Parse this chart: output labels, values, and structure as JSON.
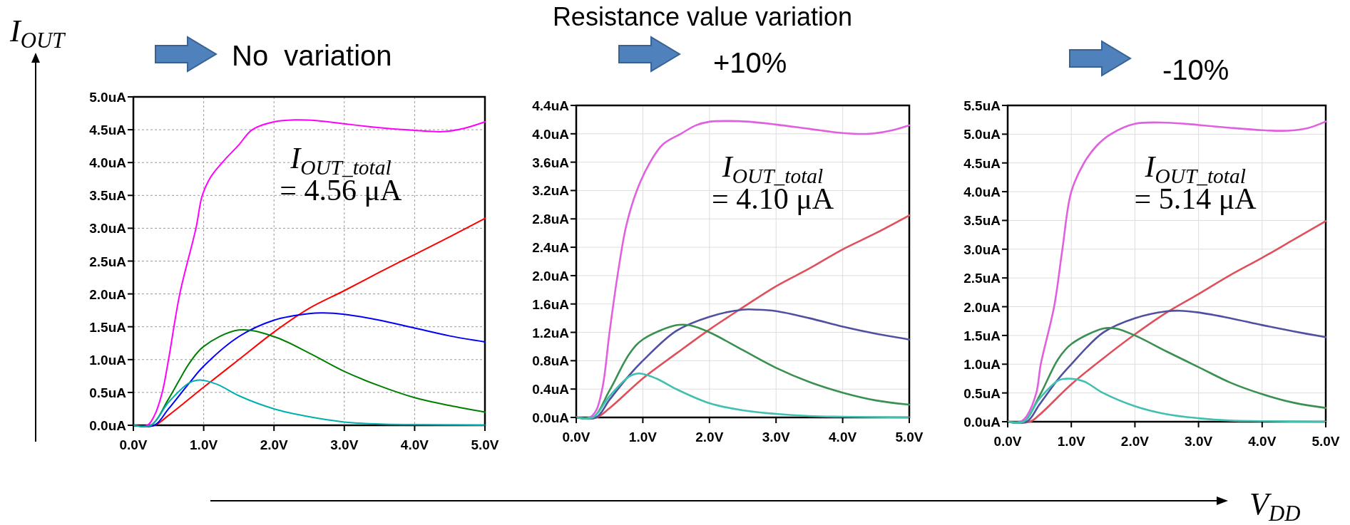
{
  "chart_data": [
    {
      "type": "line",
      "subtitle": "No  variation",
      "ylabel": "I$_{OUT}$",
      "annotations": [
        "I$_{OUT_total}$",
        "= 4.56 μA"
      ],
      "xlim": [
        0,
        5
      ],
      "ylim": [
        0,
        5
      ],
      "xticks": [
        {
          "value": 0,
          "label": "0.0V"
        },
        {
          "value": 1,
          "label": "1.0V"
        },
        {
          "value": 2,
          "label": "2.0V"
        },
        {
          "value": 3,
          "label": "3.0V"
        },
        {
          "value": 4,
          "label": "4.0V"
        },
        {
          "value": 5,
          "label": "5.0V"
        }
      ],
      "yticks": [
        {
          "value": 0,
          "label": "0.0uA"
        },
        {
          "value": 0.5,
          "label": "0.5uA"
        },
        {
          "value": 1,
          "label": "1.0uA"
        },
        {
          "value": 1.5,
          "label": "1.5uA"
        },
        {
          "value": 2,
          "label": "2.0uA"
        },
        {
          "value": 2.5,
          "label": "2.5uA"
        },
        {
          "value": 3,
          "label": "3.0uA"
        },
        {
          "value": 3.5,
          "label": "3.5uA"
        },
        {
          "value": 4,
          "label": "4.0uA"
        },
        {
          "value": 4.5,
          "label": "4.5uA"
        },
        {
          "value": 5,
          "label": "5.0uA"
        }
      ],
      "grid": true,
      "line_style": "solid",
      "series": [
        {
          "color": "#ff00ff",
          "x": [
            0,
            0.2,
            0.3,
            0.41,
            0.5,
            0.66,
            0.89,
            0.98,
            1.1,
            1.28,
            1.5,
            1.69,
            2.0,
            2.3,
            2.6,
            3.0,
            3.5,
            4.0,
            4.4,
            4.7,
            5.0
          ],
          "values": [
            0,
            0,
            0.15,
            0.5,
            1.0,
            2.0,
            3.0,
            3.5,
            3.78,
            4.02,
            4.27,
            4.5,
            4.62,
            4.65,
            4.64,
            4.59,
            4.53,
            4.49,
            4.47,
            4.52,
            4.62
          ]
        },
        {
          "color": "#ff0000",
          "x": [
            0,
            0.3,
            0.5,
            1.0,
            1.5,
            2.0,
            2.5,
            3.0,
            3.5,
            4.0,
            4.5,
            5.0
          ],
          "values": [
            0,
            0,
            0.15,
            0.58,
            1.0,
            1.42,
            1.78,
            2.05,
            2.33,
            2.6,
            2.87,
            3.15
          ]
        },
        {
          "color": "#0000ff",
          "x": [
            0,
            0.3,
            0.5,
            0.8,
            1.0,
            1.5,
            2.0,
            2.5,
            2.7,
            3.0,
            3.5,
            4.0,
            4.5,
            5.0
          ],
          "values": [
            0,
            0,
            0.25,
            0.65,
            0.9,
            1.35,
            1.6,
            1.7,
            1.71,
            1.69,
            1.6,
            1.48,
            1.36,
            1.27
          ]
        },
        {
          "color": "#008000",
          "x": [
            0,
            0.25,
            0.5,
            0.8,
            1.0,
            1.5,
            2.0,
            2.5,
            3.0,
            3.5,
            4.0,
            4.5,
            5.0
          ],
          "values": [
            0,
            0,
            0.4,
            0.95,
            1.2,
            1.45,
            1.35,
            1.1,
            0.82,
            0.6,
            0.42,
            0.3,
            0.2
          ]
        },
        {
          "color": "#00b0b0",
          "x": [
            0,
            0.25,
            0.5,
            0.8,
            0.95,
            1.2,
            1.5,
            2.0,
            2.5,
            3.0,
            3.5,
            4.0,
            5.0
          ],
          "values": [
            0,
            0,
            0.35,
            0.65,
            0.69,
            0.62,
            0.45,
            0.25,
            0.13,
            0.05,
            0.02,
            0.01,
            0
          ]
        }
      ]
    },
    {
      "type": "line",
      "title": "Resistance value variation",
      "subtitle": "+10%",
      "annotations": [
        "I$_{OUT_total}$",
        "= 4.10 μA"
      ],
      "xlim": [
        0,
        5
      ],
      "ylim": [
        0,
        4.4
      ],
      "xticks": [
        {
          "value": 0,
          "label": "0.0V"
        },
        {
          "value": 1,
          "label": "1.0V"
        },
        {
          "value": 2,
          "label": "2.0V"
        },
        {
          "value": 3,
          "label": "3.0V"
        },
        {
          "value": 4,
          "label": "4.0V"
        },
        {
          "value": 5,
          "label": "5.0V"
        }
      ],
      "yticks": [
        {
          "value": 0,
          "label": "0.0uA"
        },
        {
          "value": 0.4,
          "label": "0.4uA"
        },
        {
          "value": 0.8,
          "label": "0.8uA"
        },
        {
          "value": 1.2,
          "label": "1.2uA"
        },
        {
          "value": 1.6,
          "label": "1.6uA"
        },
        {
          "value": 2.0,
          "label": "2.0uA"
        },
        {
          "value": 2.4,
          "label": "2.4uA"
        },
        {
          "value": 2.8,
          "label": "2.8uA"
        },
        {
          "value": 3.2,
          "label": "3.2uA"
        },
        {
          "value": 3.6,
          "label": "3.6uA"
        },
        {
          "value": 4.0,
          "label": "4.0uA"
        },
        {
          "value": 4.4,
          "label": "4.4uA"
        }
      ],
      "grid": true,
      "line_style": "solid",
      "series": [
        {
          "color": "#e060e0",
          "x": [
            0,
            0.2,
            0.3,
            0.4,
            0.5,
            0.62,
            0.75,
            0.91,
            1.11,
            1.3,
            1.57,
            1.8,
            2.0,
            2.3,
            2.6,
            3.0,
            3.5,
            4.0,
            4.4,
            4.7,
            5.0
          ],
          "values": [
            0,
            0,
            0.1,
            0.45,
            1.2,
            2.0,
            2.7,
            3.2,
            3.6,
            3.85,
            4.0,
            4.12,
            4.17,
            4.18,
            4.17,
            4.13,
            4.07,
            4.01,
            4.0,
            4.04,
            4.12
          ]
        },
        {
          "color": "#e0505a",
          "x": [
            0,
            0.3,
            0.5,
            1.0,
            1.5,
            2.0,
            2.5,
            3.0,
            3.5,
            4.0,
            4.5,
            5.0
          ],
          "values": [
            0,
            0,
            0.13,
            0.55,
            0.9,
            1.24,
            1.55,
            1.85,
            2.1,
            2.37,
            2.6,
            2.85
          ]
        },
        {
          "color": "#5050a0",
          "x": [
            0,
            0.3,
            0.5,
            0.8,
            1.0,
            1.5,
            2.0,
            2.5,
            2.7,
            3.0,
            3.5,
            4.0,
            4.5,
            5.0
          ],
          "values": [
            0,
            0,
            0.25,
            0.6,
            0.8,
            1.22,
            1.42,
            1.52,
            1.52,
            1.5,
            1.4,
            1.28,
            1.18,
            1.1
          ]
        },
        {
          "color": "#3a9050",
          "x": [
            0,
            0.25,
            0.5,
            0.8,
            1.0,
            1.5,
            1.7,
            2.0,
            2.5,
            3.0,
            3.5,
            4.0,
            4.5,
            5.0
          ],
          "values": [
            0,
            0,
            0.38,
            0.9,
            1.1,
            1.3,
            1.3,
            1.2,
            0.95,
            0.7,
            0.5,
            0.35,
            0.24,
            0.18
          ]
        },
        {
          "color": "#40c0b0",
          "x": [
            0,
            0.25,
            0.5,
            0.8,
            0.95,
            1.2,
            1.5,
            2.0,
            2.5,
            3.0,
            3.5,
            4.0,
            5.0
          ],
          "values": [
            0,
            0,
            0.3,
            0.58,
            0.62,
            0.55,
            0.4,
            0.2,
            0.1,
            0.05,
            0.02,
            0.01,
            0
          ]
        }
      ]
    },
    {
      "type": "line",
      "subtitle": "-10%",
      "xlabel": "V$_{DD}$",
      "annotations": [
        "I$_{OUT_total}$",
        "= 5.14 μA"
      ],
      "xlim": [
        0,
        5
      ],
      "ylim": [
        0,
        5.5
      ],
      "xticks": [
        {
          "value": 0,
          "label": "0.0V"
        },
        {
          "value": 1,
          "label": "1.0V"
        },
        {
          "value": 2,
          "label": "2.0V"
        },
        {
          "value": 3,
          "label": "3.0V"
        },
        {
          "value": 4,
          "label": "4.0V"
        },
        {
          "value": 5,
          "label": "5.0V"
        }
      ],
      "yticks": [
        {
          "value": 0,
          "label": "0.0uA"
        },
        {
          "value": 0.5,
          "label": "0.5uA"
        },
        {
          "value": 1,
          "label": "1.0uA"
        },
        {
          "value": 1.5,
          "label": "1.5uA"
        },
        {
          "value": 2,
          "label": "2.0uA"
        },
        {
          "value": 2.5,
          "label": "2.5uA"
        },
        {
          "value": 3,
          "label": "3.0uA"
        },
        {
          "value": 3.5,
          "label": "3.5uA"
        },
        {
          "value": 4,
          "label": "4.0uA"
        },
        {
          "value": 4.5,
          "label": "4.5uA"
        },
        {
          "value": 5,
          "label": "5.0uA"
        },
        {
          "value": 5.5,
          "label": "5.5uA"
        }
      ],
      "grid": true,
      "line_style": "solid",
      "series": [
        {
          "color": "#e060e0",
          "x": [
            0,
            0.2,
            0.3,
            0.45,
            0.52,
            0.73,
            0.86,
            1.0,
            1.2,
            1.4,
            1.62,
            2.0,
            2.5,
            3.0,
            3.5,
            4.0,
            4.4,
            4.7,
            5.0
          ],
          "values": [
            0,
            0,
            0.1,
            0.5,
            1.0,
            2.0,
            3.0,
            4.0,
            4.5,
            4.8,
            5.0,
            5.18,
            5.2,
            5.16,
            5.11,
            5.07,
            5.06,
            5.1,
            5.22
          ]
        },
        {
          "color": "#e0505a",
          "x": [
            0,
            0.35,
            0.5,
            1.0,
            1.5,
            2.0,
            2.5,
            3.0,
            3.5,
            4.0,
            4.5,
            5.0
          ],
          "values": [
            0,
            0,
            0.12,
            0.65,
            1.1,
            1.52,
            1.9,
            2.22,
            2.55,
            2.85,
            3.17,
            3.49
          ]
        },
        {
          "color": "#5050a0",
          "x": [
            0,
            0.3,
            0.5,
            0.8,
            1.0,
            1.5,
            2.0,
            2.5,
            2.7,
            3.0,
            3.5,
            4.0,
            4.5,
            5.0
          ],
          "values": [
            0,
            0,
            0.3,
            0.75,
            1.0,
            1.55,
            1.8,
            1.92,
            1.93,
            1.9,
            1.8,
            1.68,
            1.57,
            1.47
          ]
        },
        {
          "color": "#3a9050",
          "x": [
            0,
            0.25,
            0.5,
            0.8,
            1.0,
            1.5,
            1.7,
            2.0,
            2.5,
            3.0,
            3.5,
            4.0,
            4.5,
            5.0
          ],
          "values": [
            0,
            0,
            0.45,
            1.1,
            1.35,
            1.62,
            1.62,
            1.5,
            1.22,
            0.95,
            0.68,
            0.48,
            0.33,
            0.24
          ]
        },
        {
          "color": "#40c0b0",
          "x": [
            0,
            0.25,
            0.5,
            0.8,
            0.95,
            1.2,
            1.5,
            2.0,
            2.5,
            3.0,
            3.5,
            4.0,
            5.0
          ],
          "values": [
            0,
            0,
            0.4,
            0.72,
            0.75,
            0.7,
            0.5,
            0.27,
            0.13,
            0.06,
            0.02,
            0.01,
            0
          ]
        }
      ]
    }
  ]
}
